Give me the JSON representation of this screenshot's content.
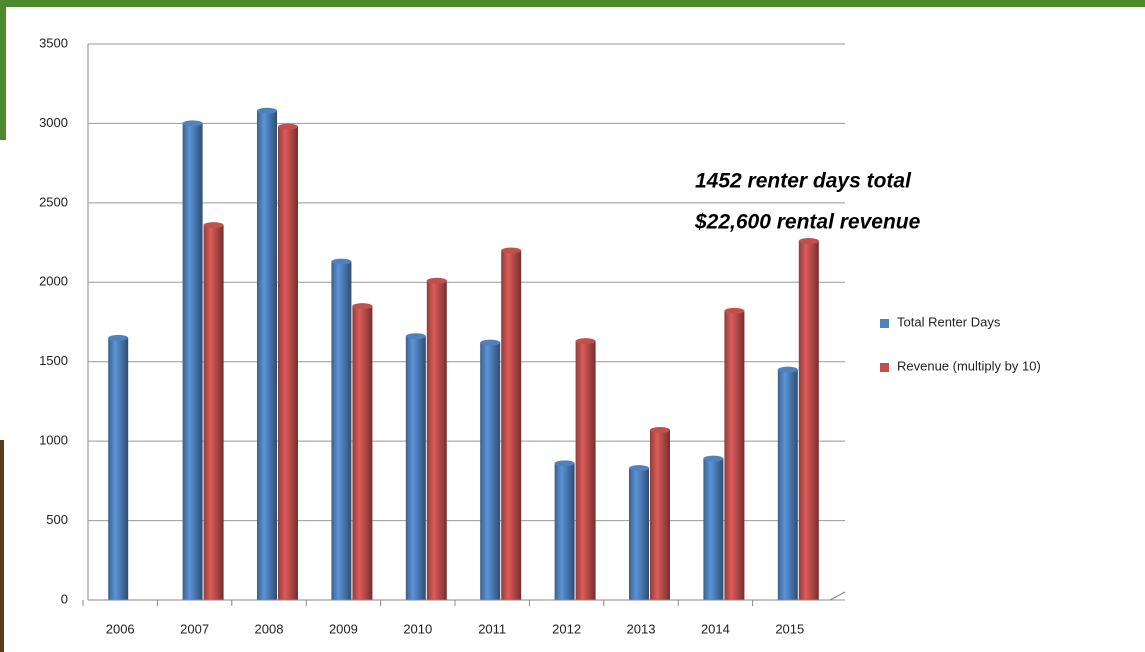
{
  "chart_data": {
    "type": "bar",
    "categories": [
      "2006",
      "2007",
      "2008",
      "2009",
      "2010",
      "2011",
      "2012",
      "2013",
      "2014",
      "2015"
    ],
    "series": [
      {
        "name": "Total Renter Days",
        "color": "#4f81bd",
        "values": [
          1650,
          3000,
          3080,
          2130,
          1660,
          1620,
          860,
          830,
          890,
          1450
        ]
      },
      {
        "name": "Revenue (multiply by 10)",
        "color": "#c0504d",
        "values": [
          null,
          2360,
          2980,
          1850,
          2010,
          2200,
          1630,
          1070,
          1820,
          2260
        ]
      }
    ],
    "ylim": [
      0,
      3500
    ],
    "yticks": [
      0,
      500,
      1000,
      1500,
      2000,
      2500,
      3000,
      3500
    ],
    "grid": true,
    "annotations": [
      "1452 renter days total",
      "$22,600 rental revenue"
    ],
    "legend": "right"
  }
}
